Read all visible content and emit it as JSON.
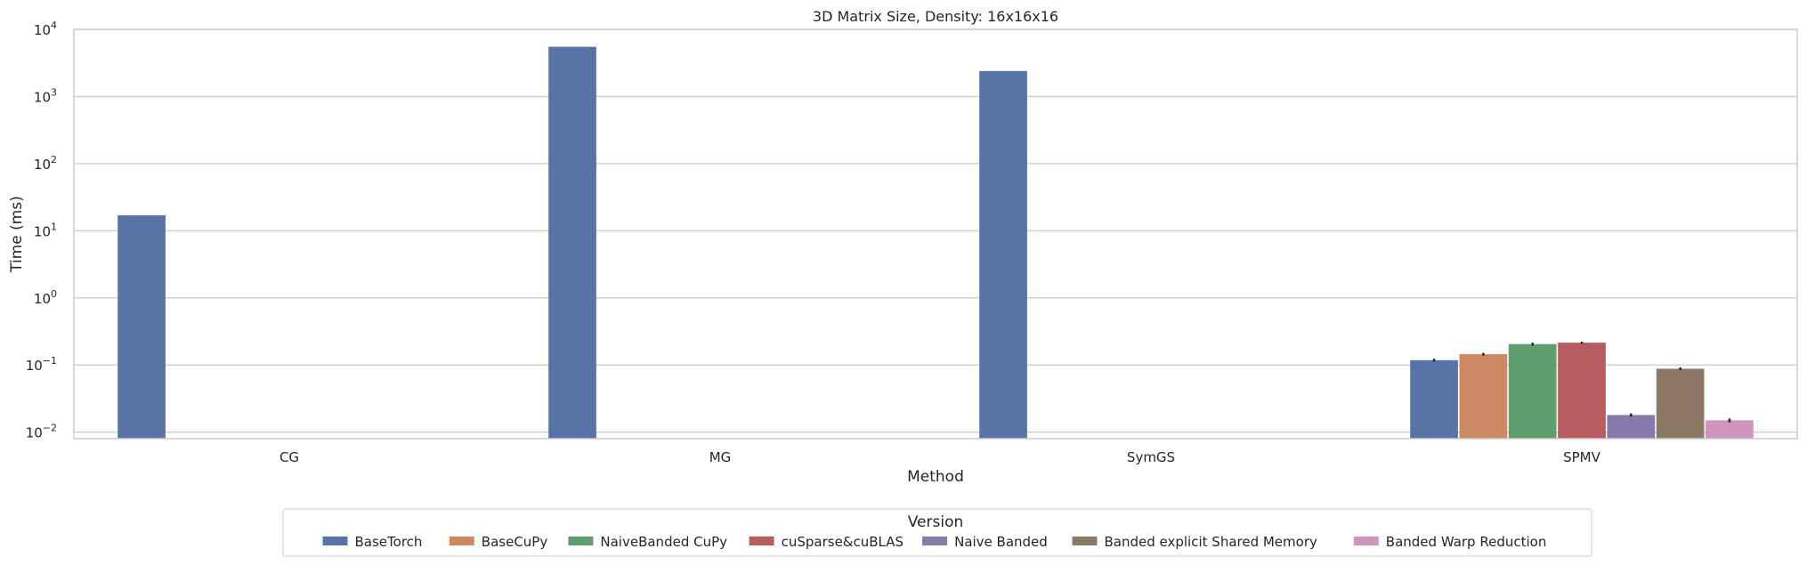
{
  "chart_data": {
    "type": "bar",
    "title": "3D Matrix Size, Density: 16x16x16",
    "xlabel": "Method",
    "ylabel": "Time (ms)",
    "yscale": "log",
    "ylim": [
      0.008,
      10000
    ],
    "yticks": [
      {
        "value": 0.01,
        "base": "10",
        "exp": "−2"
      },
      {
        "value": 0.1,
        "base": "10",
        "exp": "−1"
      },
      {
        "value": 1,
        "base": "10",
        "exp": "0"
      },
      {
        "value": 10,
        "base": "10",
        "exp": "1"
      },
      {
        "value": 100,
        "base": "10",
        "exp": "2"
      },
      {
        "value": 1000,
        "base": "10",
        "exp": "3"
      },
      {
        "value": 10000,
        "base": "10",
        "exp": "4"
      }
    ],
    "grid": true,
    "categories": [
      "CG",
      "MG",
      "SymGS",
      "SPMV"
    ],
    "legend": {
      "title": "Version",
      "placement": "bottom-center"
    },
    "series": [
      {
        "name": "BaseTorch",
        "color": "#5874a6",
        "values": [
          17,
          5500,
          2400,
          0.118
        ],
        "errors": [
          null,
          null,
          null,
          0.006
        ]
      },
      {
        "name": "BaseCuPy",
        "color": "#cc8963",
        "values": [
          null,
          null,
          null,
          0.145
        ],
        "errors": [
          null,
          null,
          null,
          0.007
        ]
      },
      {
        "name": "NaiveBanded CuPy",
        "color": "#5f9e6e",
        "values": [
          null,
          null,
          null,
          0.205
        ],
        "errors": [
          null,
          null,
          null,
          0.01
        ]
      },
      {
        "name": "cuSparse&cuBLAS",
        "color": "#b55d60",
        "values": [
          null,
          null,
          null,
          0.215
        ],
        "errors": [
          null,
          null,
          null,
          0.008
        ]
      },
      {
        "name": "Naive Banded",
        "color": "#857aab",
        "values": [
          null,
          null,
          null,
          0.018
        ],
        "errors": [
          null,
          null,
          null,
          0.001
        ]
      },
      {
        "name": "Banded explicit Shared Memory",
        "color": "#8d7866",
        "values": [
          null,
          null,
          null,
          0.088
        ],
        "errors": [
          null,
          null,
          null,
          0.004
        ]
      },
      {
        "name": "Banded Warp Reduction",
        "color": "#d095bf",
        "values": [
          null,
          null,
          null,
          0.015
        ],
        "errors": [
          null,
          null,
          null,
          0.001
        ]
      }
    ]
  }
}
